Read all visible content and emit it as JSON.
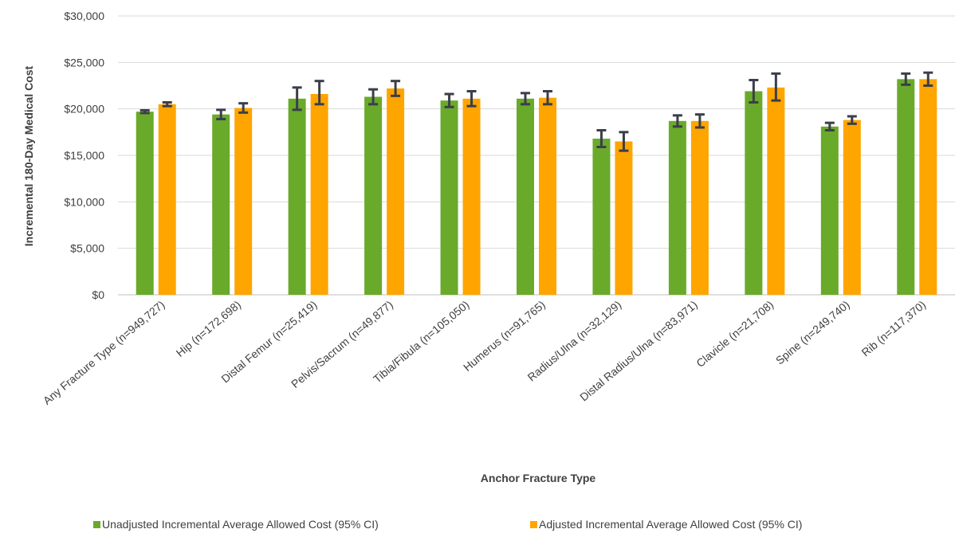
{
  "chart_data": {
    "type": "bar",
    "xlabel": "Anchor Fracture Type",
    "ylabel": "Incremental 180-Day Medical Cost",
    "ylim": [
      0,
      30000
    ],
    "yticks": [
      "$0",
      "$5,000",
      "$10,000",
      "$15,000",
      "$20,000",
      "$25,000",
      "$30,000"
    ],
    "ytick_values": [
      0,
      5000,
      10000,
      15000,
      20000,
      25000,
      30000
    ],
    "grid": "horizontal",
    "legend_position": "bottom",
    "categories": [
      "Any Fracture Type (n=949,727)",
      "Hip (n=172,698)",
      "Distal Femur (n=25,419)",
      "Pelvis/Sacrum (n=49,877)",
      "Tibia/Fibula (n=105,050)",
      "Humerus (n=91,765)",
      "Radius/Ulna (n=32,129)",
      "Distal Radius/Ulna (n=83,971)",
      "Clavicle (n=21,708)",
      "Spine (n=249,740)",
      "Rib (n=117,370)"
    ],
    "series": [
      {
        "name": "Unadjusted Incremental Average Allowed Cost (95% CI)",
        "color": "#6aaa2a",
        "values": [
          19700,
          19400,
          21100,
          21300,
          20900,
          21100,
          16800,
          18700,
          21900,
          18100,
          23200
        ],
        "ci_low": [
          19550,
          18900,
          19900,
          20500,
          20200,
          20500,
          15900,
          18100,
          20700,
          17700,
          22600
        ],
        "ci_high": [
          19850,
          19900,
          22300,
          22100,
          21600,
          21700,
          17700,
          19300,
          23100,
          18500,
          23800
        ]
      },
      {
        "name": "Adjusted Incremental Average Allowed Cost (95% CI)",
        "color": "#ffa500",
        "values": [
          20500,
          20100,
          21600,
          22200,
          21100,
          21200,
          16500,
          18700,
          22300,
          18800,
          23200
        ],
        "ci_low": [
          20300,
          19600,
          20500,
          21400,
          20300,
          20500,
          15500,
          18000,
          20900,
          18400,
          22500
        ],
        "ci_high": [
          20700,
          20600,
          23000,
          23000,
          21900,
          21900,
          17500,
          19400,
          23800,
          19200,
          23900
        ]
      }
    ]
  }
}
